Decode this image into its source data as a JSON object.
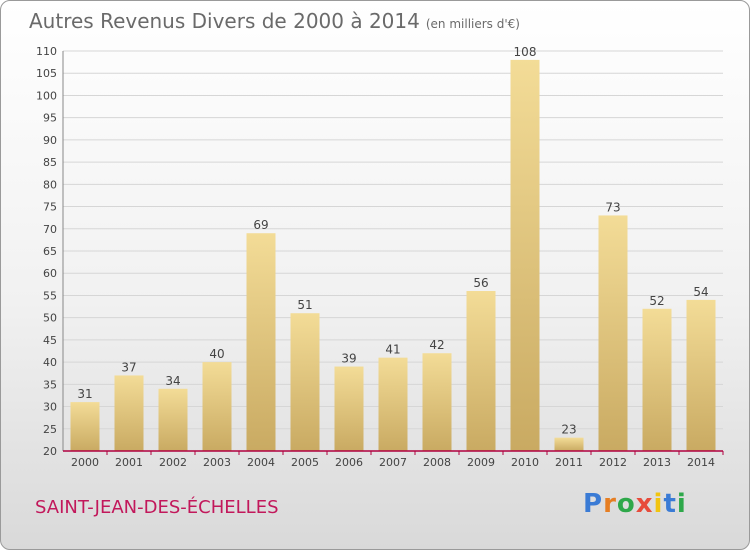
{
  "header": {
    "title": "Autres Revenus Divers de 2000 à 2014",
    "unit": "(en milliers d'€)"
  },
  "footer": {
    "city": "SAINT-JEAN-DES-ÉCHELLES",
    "logo": "Proxiti"
  },
  "colors": {
    "bar_light": "#f3dc97",
    "bar_dark": "#c9aa62",
    "grid": "#d6d6d6",
    "axis_red": "#b00040",
    "city": "#c2185b"
  },
  "chart_data": {
    "type": "bar",
    "title": "Autres Revenus Divers de 2000 à 2014",
    "subtitle": "(en milliers d'€)",
    "xlabel": "",
    "ylabel": "",
    "categories": [
      "2000",
      "2001",
      "2002",
      "2003",
      "2004",
      "2005",
      "2006",
      "2007",
      "2008",
      "2009",
      "2010",
      "2011",
      "2012",
      "2013",
      "2014"
    ],
    "values": [
      31,
      37,
      34,
      40,
      69,
      51,
      39,
      41,
      42,
      56,
      108,
      23,
      73,
      52,
      54
    ],
    "ylim": [
      20,
      110
    ],
    "yticks": [
      20,
      25,
      30,
      35,
      40,
      45,
      50,
      55,
      60,
      65,
      70,
      75,
      80,
      85,
      90,
      95,
      100,
      105,
      110
    ],
    "grid": true,
    "legend": "none"
  }
}
